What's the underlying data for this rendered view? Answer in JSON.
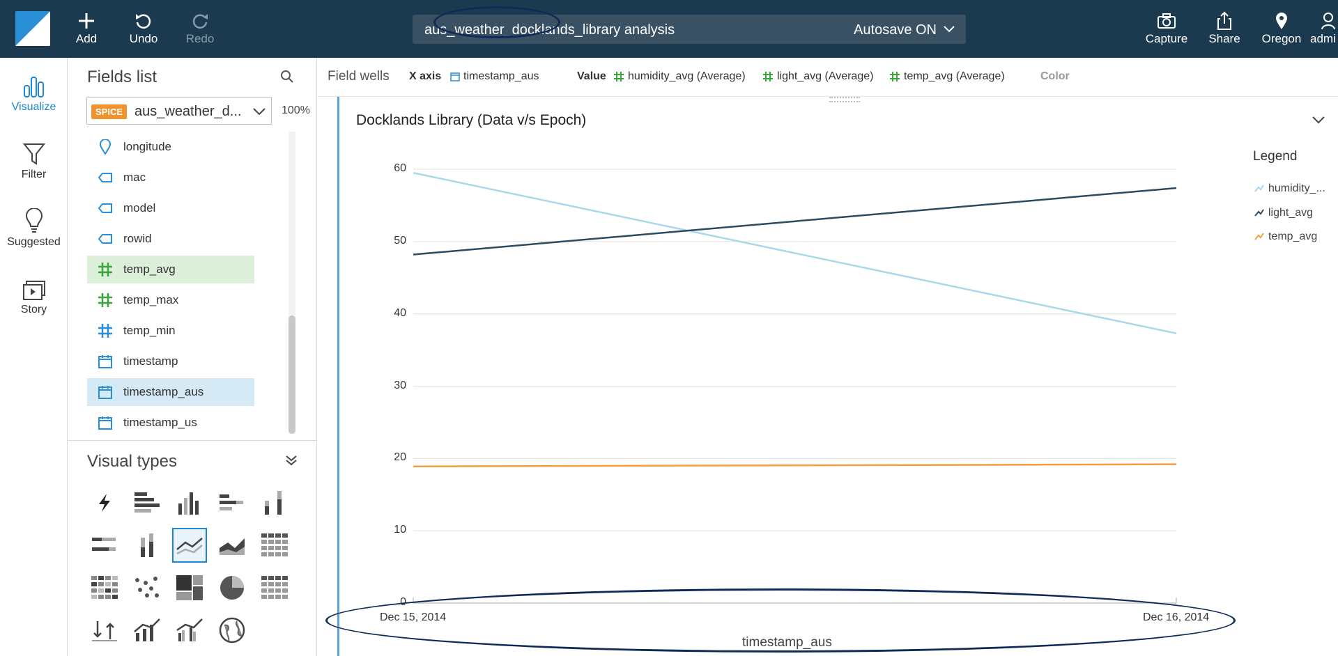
{
  "toolbar": {
    "add": "Add",
    "undo": "Undo",
    "redo": "Redo",
    "analysis_title": "aus_weather_docklands_library analysis",
    "autosave": "Autosave ON",
    "capture": "Capture",
    "share": "Share",
    "region": "Oregon",
    "user": "admi"
  },
  "leftnav": {
    "visualize": "Visualize",
    "filter": "Filter",
    "suggested": "Suggested",
    "story": "Story"
  },
  "fields_panel": {
    "title": "Fields list",
    "badge": "SPICE",
    "dataset": "aus_weather_d...",
    "percent": "100%",
    "items": [
      {
        "label": "longitude",
        "icon": "geo-pin-icon"
      },
      {
        "label": "mac",
        "icon": "dimension-tag-icon"
      },
      {
        "label": "model",
        "icon": "dimension-tag-icon"
      },
      {
        "label": "rowid",
        "icon": "dimension-tag-icon"
      },
      {
        "label": "temp_avg",
        "icon": "measure-hash-icon"
      },
      {
        "label": "temp_max",
        "icon": "measure-hash-icon"
      },
      {
        "label": "temp_min",
        "icon": "measure-hash-icon"
      },
      {
        "label": "timestamp",
        "icon": "calendar-icon"
      },
      {
        "label": "timestamp_aus",
        "icon": "calendar-icon"
      },
      {
        "label": "timestamp_us",
        "icon": "calendar-icon"
      }
    ]
  },
  "visual_types": {
    "title": "Visual types"
  },
  "wells": {
    "title": "Field wells",
    "xaxis_label": "X axis",
    "xaxis_field": "timestamp_aus",
    "value_label": "Value",
    "values": [
      "humidity_avg (Average)",
      "light_avg (Average)",
      "temp_avg (Average)"
    ],
    "color_label": "Color"
  },
  "chart": {
    "title": "Docklands Library (Data v/s Epoch)",
    "legend_title": "Legend",
    "colors": {
      "humidity_avg": "#a8d8ea",
      "light_avg": "#2c4a60",
      "temp_avg": "#f0a040"
    }
  },
  "chart_data": {
    "type": "line",
    "title": "Docklands Library (Data v/s Epoch)",
    "x": [
      "Dec 15, 2014",
      "Dec 16, 2014"
    ],
    "xlabel": "timestamp_aus",
    "ylabel": "",
    "ylim": [
      0,
      60
    ],
    "yticks": [
      0,
      10,
      20,
      30,
      40,
      50,
      60
    ],
    "grid": true,
    "legend_position": "right",
    "series": [
      {
        "name": "humidity_...",
        "values": [
          59.5,
          37.3
        ]
      },
      {
        "name": "light_avg",
        "values": [
          48.2,
          57.4
        ]
      },
      {
        "name": "temp_avg",
        "values": [
          18.9,
          19.2
        ]
      }
    ]
  }
}
